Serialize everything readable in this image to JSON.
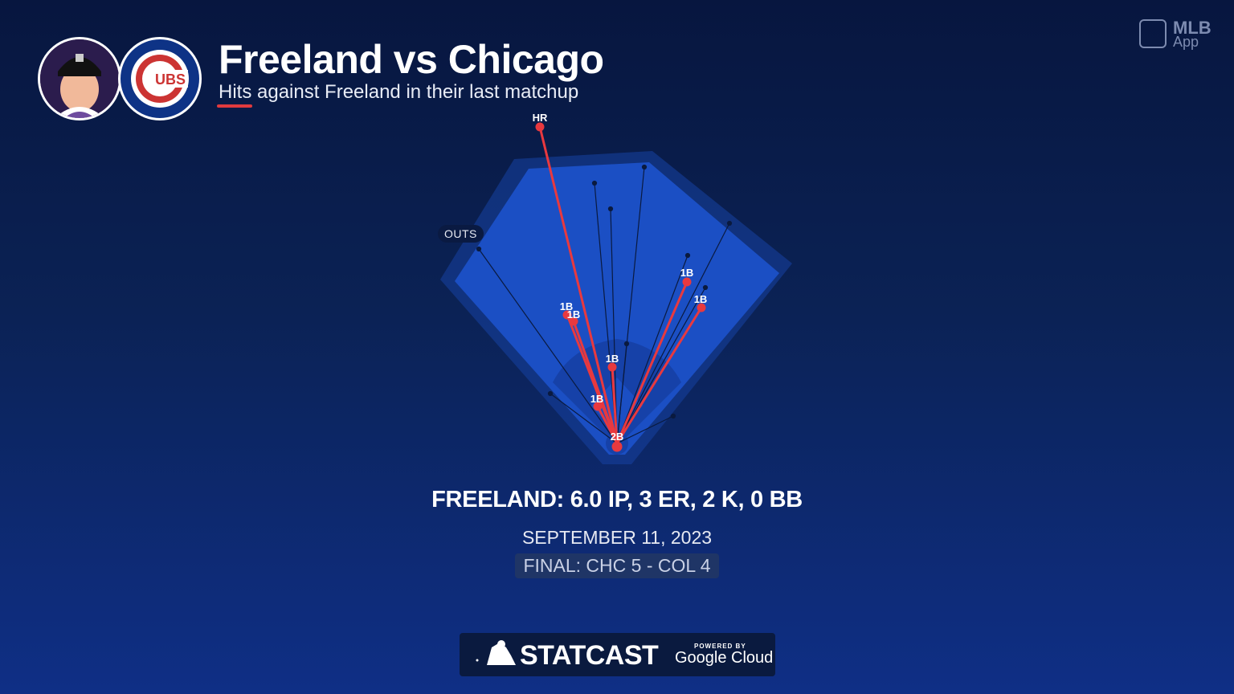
{
  "header": {
    "title": "Freeland vs Chicago",
    "subtitle": "Hits against Freeland in their last matchup",
    "team_logo_text": "UBS"
  },
  "brand": {
    "app_name": "MLB",
    "app_suffix": "App"
  },
  "field": {
    "outs_label": "OUTS",
    "hits": [
      "HR",
      "1B",
      "1B",
      "1B",
      "1B",
      "1B",
      "1B",
      "2B"
    ]
  },
  "summary": {
    "stats": "FREELAND: 6.0 IP, 3 ER, 2 K, 0 BB",
    "date": "SEPTEMBER 11, 2023",
    "final": "FINAL: CHC 5 - COL 4"
  },
  "footer": {
    "statcast": "STATCAST",
    "powered_by": "POWERED BY",
    "google_cloud": "Google Cloud"
  },
  "colors": {
    "hit": "#e8393f",
    "background": "#0b2255",
    "field": "#1446b3"
  },
  "icons": [
    "player-headshot",
    "cubs-logo",
    "mlb-logo",
    "mlb-batter-icon"
  ]
}
